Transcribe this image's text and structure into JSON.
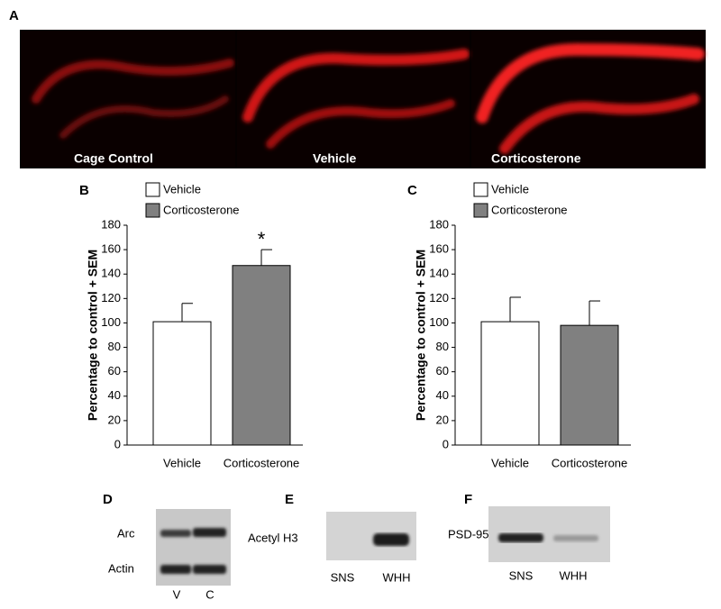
{
  "panel_a": {
    "label": "A",
    "images": [
      "Cage Control",
      "Vehicle",
      "Corticosterone"
    ]
  },
  "chart_data": [
    {
      "type": "bar",
      "panel_label": "B",
      "ylabel": "Percentage to control + SEM",
      "categories": [
        "Vehicle",
        "Corticosterone"
      ],
      "series": [
        {
          "name": "Vehicle",
          "color": "#ffffff",
          "values": [
            101,
            null
          ],
          "errors": [
            15,
            null
          ]
        },
        {
          "name": "Corticosterone",
          "color": "#808080",
          "values": [
            null,
            147
          ],
          "errors": [
            null,
            13
          ]
        }
      ],
      "annotation": "*",
      "ylim": [
        0,
        180
      ],
      "yticks": [
        0,
        20,
        40,
        60,
        80,
        100,
        120,
        140,
        160,
        180
      ]
    },
    {
      "type": "bar",
      "panel_label": "C",
      "ylabel": "Percentage to control + SEM",
      "categories": [
        "Vehicle",
        "Corticosterone"
      ],
      "series": [
        {
          "name": "Vehicle",
          "color": "#ffffff",
          "values": [
            101,
            null
          ],
          "errors": [
            20,
            null
          ]
        },
        {
          "name": "Corticosterone",
          "color": "#808080",
          "values": [
            null,
            98
          ],
          "errors": [
            null,
            20
          ]
        }
      ],
      "ylim": [
        0,
        180
      ],
      "yticks": [
        0,
        20,
        40,
        60,
        80,
        100,
        120,
        140,
        160,
        180
      ]
    }
  ],
  "blots": [
    {
      "label": "D",
      "rows": [
        "Arc",
        "Actin"
      ],
      "lanes": [
        "V",
        "C"
      ]
    },
    {
      "label": "E",
      "rows": [
        "Acetyl H3"
      ],
      "lanes": [
        "SNS",
        "WHH"
      ]
    },
    {
      "label": "F",
      "rows": [
        "PSD-95"
      ],
      "lanes": [
        "SNS",
        "WHH"
      ]
    }
  ]
}
